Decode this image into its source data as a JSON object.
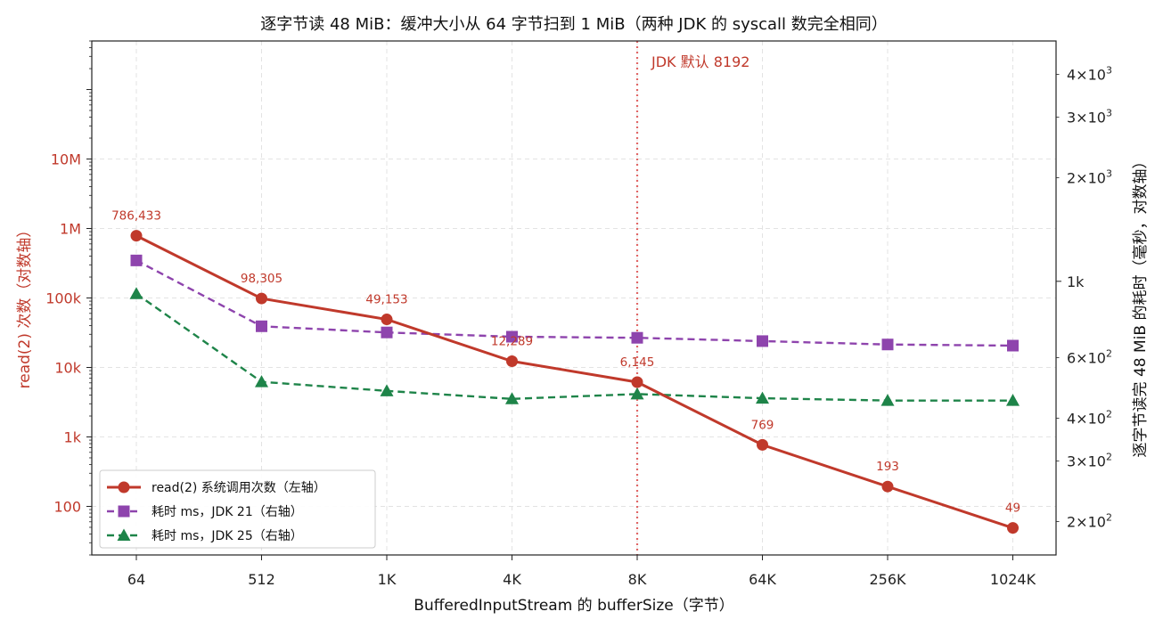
{
  "chart_data": {
    "type": "line",
    "title": "逐字节读 48 MiB：缓冲大小从 64 字节扫到 1 MiB（两种 JDK 的 syscall 数完全相同）",
    "xlabel": "BufferedInputStream 的 bufferSize（字节）",
    "ylabel_left": "read(2) 次数（对数轴）",
    "ylabel_right": "逐字节读完 48 MiB 的耗时（毫秒，对数轴）",
    "categories": [
      "64",
      "512",
      "1K",
      "4K",
      "8K",
      "64K",
      "256K",
      "1024K"
    ],
    "y_left": {
      "scale": "log",
      "ylim": [
        20,
        500000000
      ],
      "ticks": [
        100,
        1000,
        10000,
        100000,
        1000000,
        10000000
      ],
      "tick_labels": [
        "100",
        "1k",
        "10k",
        "100k",
        "1M",
        "10M"
      ]
    },
    "y_right": {
      "scale": "log",
      "ylim": [
        160,
        5000
      ],
      "major_ticks": [
        1000
      ],
      "major_labels": [
        "1k"
      ],
      "minor_ticks": [
        200,
        300,
        400,
        600,
        2000,
        3000,
        4000
      ],
      "minor_mantissa": [
        "2",
        "3",
        "4",
        "6",
        "2",
        "3",
        "4"
      ],
      "minor_exp": [
        "2",
        "2",
        "2",
        "2",
        "3",
        "3",
        "3"
      ],
      "times_sign": "×10"
    },
    "series": [
      {
        "name": "read(2) 系统调用次数（左轴）",
        "axis": "left",
        "color": "#c0392b",
        "marker": "circle",
        "dash": "solid",
        "values": [
          786433,
          98305,
          49153,
          12289,
          6145,
          769,
          193,
          49
        ],
        "data_labels": [
          "786,433",
          "98,305",
          "49,153",
          "12,289",
          "6,145",
          "769",
          "193",
          "49"
        ]
      },
      {
        "name": "耗时 ms，JDK 21（右轴）",
        "axis": "right",
        "color": "#8e44ad",
        "marker": "square",
        "dash": "dashed",
        "values": [
          1150,
          740,
          710,
          690,
          685,
          670,
          655,
          650
        ]
      },
      {
        "name": "耗时 ms，JDK 25（右轴）",
        "axis": "right",
        "color": "#1e8449",
        "marker": "triangle",
        "dash": "dashed",
        "values": [
          920,
          510,
          480,
          455,
          470,
          457,
          450,
          450
        ]
      }
    ],
    "vline": {
      "category": "8K",
      "label": "JDK 默认 8192",
      "color": "#e06666"
    },
    "grid": true,
    "legend_position": "lower-left"
  }
}
